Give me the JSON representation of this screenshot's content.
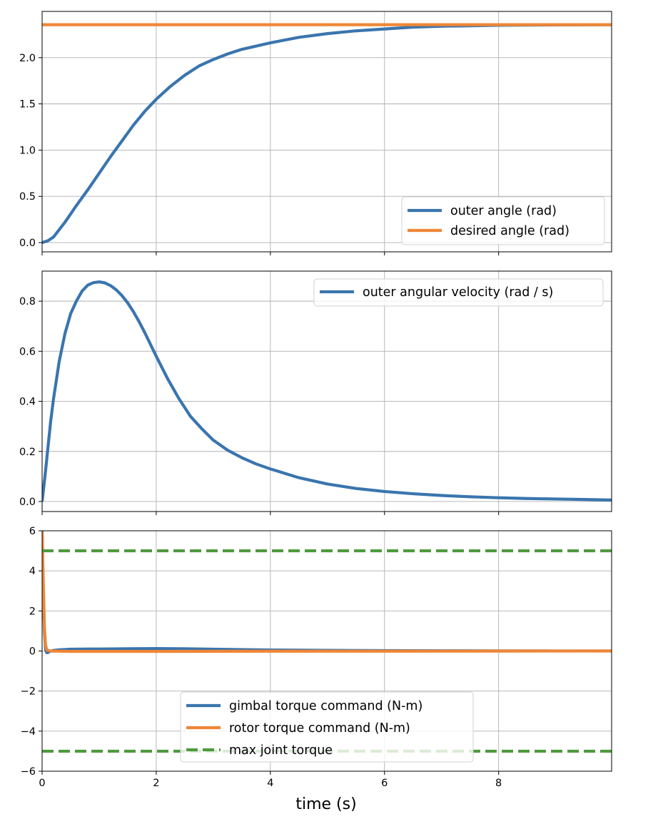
{
  "chart_data": [
    {
      "type": "line",
      "title": "",
      "xlabel": "",
      "ylabel": "",
      "xlim": [
        0,
        9.98
      ],
      "ylim": [
        -0.1,
        2.5
      ],
      "xticks": [
        0,
        2,
        4,
        6,
        8
      ],
      "yticks": [
        0.0,
        0.5,
        1.0,
        1.5,
        2.0
      ],
      "ytick_labels": [
        "0.0",
        "0.5",
        "1.0",
        "1.5",
        "2.0"
      ],
      "grid": true,
      "legend_position": "lower-right",
      "series": [
        {
          "name": "outer angle (rad)",
          "color": "#3a75ae",
          "style": "solid",
          "x": [
            0,
            0.1,
            0.2,
            0.4,
            0.6,
            0.8,
            1.0,
            1.2,
            1.4,
            1.6,
            1.8,
            2.0,
            2.25,
            2.5,
            2.75,
            3.0,
            3.25,
            3.5,
            4.0,
            4.5,
            5.0,
            5.5,
            6.0,
            6.5,
            7.0,
            7.5,
            8.0,
            8.5,
            9.0,
            9.5,
            9.98
          ],
          "y": [
            0.0,
            0.02,
            0.06,
            0.22,
            0.4,
            0.57,
            0.75,
            0.93,
            1.1,
            1.27,
            1.42,
            1.55,
            1.69,
            1.81,
            1.91,
            1.98,
            2.04,
            2.09,
            2.16,
            2.22,
            2.26,
            2.29,
            2.31,
            2.33,
            2.34,
            2.345,
            2.35,
            2.352,
            2.354,
            2.355,
            2.356
          ]
        },
        {
          "name": "desired angle (rad)",
          "color": "#ef8636",
          "style": "solid",
          "x": [
            0,
            9.98
          ],
          "y": [
            2.356,
            2.356
          ]
        }
      ]
    },
    {
      "type": "line",
      "title": "",
      "xlabel": "",
      "ylabel": "",
      "xlim": [
        0,
        9.98
      ],
      "ylim": [
        -0.04,
        0.92
      ],
      "xticks": [
        0,
        2,
        4,
        6,
        8
      ],
      "yticks": [
        0.0,
        0.2,
        0.4,
        0.6,
        0.8
      ],
      "ytick_labels": [
        "0.0",
        "0.2",
        "0.4",
        "0.6",
        "0.8"
      ],
      "grid": true,
      "legend_position": "upper-right",
      "series": [
        {
          "name": "outer angular velocity (rad / s)",
          "color": "#3a75ae",
          "style": "solid",
          "x": [
            0,
            0.05,
            0.1,
            0.15,
            0.2,
            0.3,
            0.4,
            0.5,
            0.6,
            0.7,
            0.8,
            0.9,
            1.0,
            1.1,
            1.2,
            1.3,
            1.4,
            1.5,
            1.6,
            1.7,
            1.8,
            1.9,
            2.0,
            2.2,
            2.4,
            2.6,
            2.8,
            3.0,
            3.25,
            3.5,
            3.75,
            4.0,
            4.5,
            5.0,
            5.5,
            6.0,
            6.5,
            7.0,
            7.5,
            8.0,
            8.5,
            9.0,
            9.5,
            9.98
          ],
          "y": [
            0.0,
            0.1,
            0.21,
            0.32,
            0.41,
            0.56,
            0.67,
            0.75,
            0.8,
            0.84,
            0.864,
            0.874,
            0.877,
            0.873,
            0.862,
            0.845,
            0.822,
            0.793,
            0.758,
            0.718,
            0.674,
            0.627,
            0.58,
            0.49,
            0.41,
            0.34,
            0.29,
            0.245,
            0.205,
            0.175,
            0.15,
            0.13,
            0.095,
            0.07,
            0.052,
            0.04,
            0.031,
            0.024,
            0.019,
            0.015,
            0.012,
            0.01,
            0.008,
            0.006
          ]
        }
      ]
    },
    {
      "type": "line",
      "title": "",
      "xlabel": "time (s)",
      "ylabel": "",
      "xlim": [
        0,
        9.98
      ],
      "ylim": [
        -6,
        6
      ],
      "xticks": [
        0,
        2,
        4,
        6,
        8
      ],
      "xtick_labels": [
        "0",
        "2",
        "4",
        "6",
        "8"
      ],
      "yticks": [
        -6,
        -4,
        -2,
        0,
        2,
        4,
        6
      ],
      "ytick_labels": [
        "−6",
        "−4",
        "−2",
        "0",
        "2",
        "4",
        "6"
      ],
      "grid": true,
      "legend_position": "lower-center",
      "series": [
        {
          "name": "gimbal torque command (N-m)",
          "color": "#3a75ae",
          "style": "solid",
          "x": [
            0,
            0.02,
            0.04,
            0.06,
            0.08,
            0.1,
            0.13,
            0.2,
            0.3,
            0.5,
            1.0,
            1.5,
            2.0,
            2.5,
            3.0,
            4.0,
            5.0,
            6.0,
            7.0,
            8.0,
            9.0,
            9.98
          ],
          "y": [
            6.0,
            3.0,
            1.0,
            0.1,
            -0.08,
            -0.08,
            -0.02,
            0.03,
            0.06,
            0.09,
            0.1,
            0.11,
            0.12,
            0.11,
            0.09,
            0.05,
            0.03,
            0.02,
            0.01,
            0.005,
            0.003,
            0.002
          ]
        },
        {
          "name": "rotor torque command (N-m)",
          "color": "#ef8636",
          "style": "solid",
          "x": [
            0,
            0.02,
            0.04,
            0.06,
            0.08,
            0.1,
            0.15,
            0.25,
            0.5,
            1.0,
            2.0,
            4.0,
            6.0,
            8.0,
            9.98
          ],
          "y": [
            6.0,
            3.5,
            1.2,
            0.3,
            0.08,
            0.03,
            0.0,
            -0.01,
            -0.02,
            -0.02,
            -0.02,
            -0.01,
            -0.01,
            -0.005,
            0.0
          ]
        },
        {
          "name": "max joint torque",
          "color": "#4f9a3e",
          "style": "dashed",
          "x": [
            0,
            9.98
          ],
          "y": [
            5,
            5
          ]
        },
        {
          "name": "",
          "color": "#4f9a3e",
          "style": "dashed",
          "x": [
            0,
            9.98
          ],
          "y": [
            -5,
            -5
          ]
        }
      ]
    }
  ]
}
